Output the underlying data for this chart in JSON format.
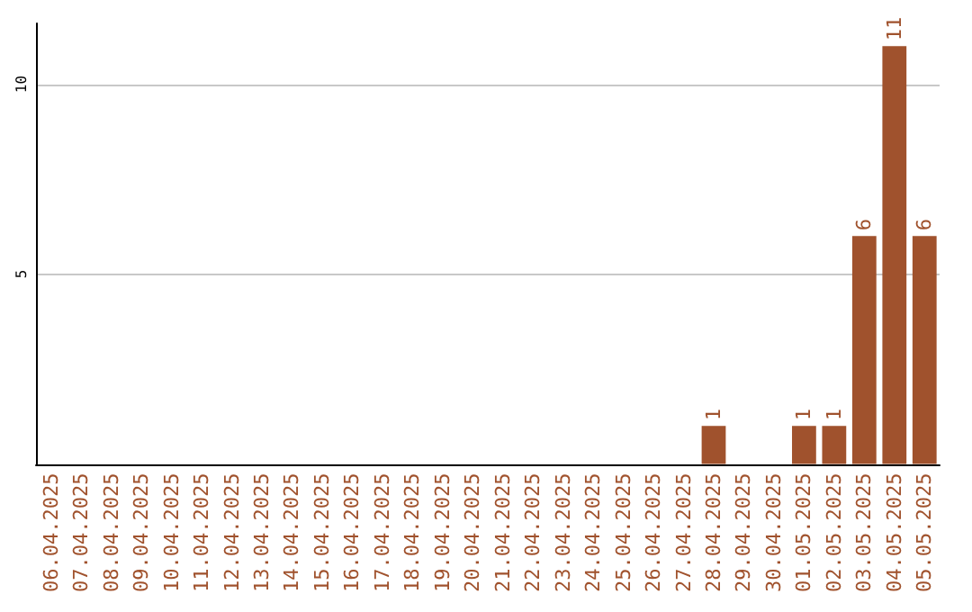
{
  "chart_data": {
    "type": "bar",
    "categories": [
      "06.04.2025",
      "07.04.2025",
      "08.04.2025",
      "09.04.2025",
      "10.04.2025",
      "11.04.2025",
      "12.04.2025",
      "13.04.2025",
      "14.04.2025",
      "15.04.2025",
      "16.04.2025",
      "17.04.2025",
      "18.04.2025",
      "19.04.2025",
      "20.04.2025",
      "21.04.2025",
      "22.04.2025",
      "23.04.2025",
      "24.04.2025",
      "25.04.2025",
      "26.04.2025",
      "27.04.2025",
      "28.04.2025",
      "29.04.2025",
      "30.04.2025",
      "01.05.2025",
      "02.05.2025",
      "03.05.2025",
      "04.05.2025",
      "05.05.2025"
    ],
    "values": [
      0,
      0,
      0,
      0,
      0,
      0,
      0,
      0,
      0,
      0,
      0,
      0,
      0,
      0,
      0,
      0,
      0,
      0,
      0,
      0,
      0,
      0,
      1,
      0,
      0,
      1,
      1,
      6,
      11,
      6
    ],
    "value_labels": [
      null,
      null,
      null,
      null,
      null,
      null,
      null,
      null,
      null,
      null,
      null,
      null,
      null,
      null,
      null,
      null,
      null,
      null,
      null,
      null,
      null,
      null,
      "1",
      null,
      null,
      "1",
      "1",
      "6",
      "11",
      "6"
    ],
    "color": "#a0522d",
    "ylim": [
      0,
      11.6
    ],
    "yticks": [
      5,
      10
    ],
    "grid": "y"
  }
}
